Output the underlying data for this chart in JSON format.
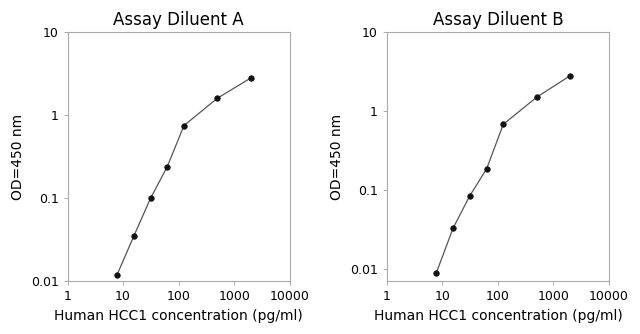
{
  "panel_A": {
    "title": "Assay Diluent A",
    "x": [
      7.8,
      15.6,
      31.25,
      62.5,
      125,
      500,
      2000
    ],
    "y": [
      0.012,
      0.035,
      0.1,
      0.24,
      0.75,
      1.6,
      2.8
    ]
  },
  "panel_B": {
    "title": "Assay Diluent B",
    "x": [
      7.8,
      15.6,
      31.25,
      62.5,
      125,
      500,
      2000
    ],
    "y": [
      0.009,
      0.033,
      0.085,
      0.185,
      0.68,
      1.5,
      2.8
    ]
  },
  "xlabel": "Human HCC1 concentration (pg/ml)",
  "ylabel": "OD=450 nm",
  "xlim": [
    1,
    10000
  ],
  "ylim_A": [
    0.01,
    10
  ],
  "ylim_B": [
    0.007,
    10
  ],
  "yticks_A": [
    0.01,
    0.1,
    1,
    10
  ],
  "yticks_B": [
    0.01,
    0.1,
    1,
    10
  ],
  "ytick_labels_A": [
    "0.01",
    "0.1",
    "1",
    "10"
  ],
  "ytick_labels_B": [
    "0.01",
    "0.1",
    "1",
    "10"
  ],
  "xticks": [
    1,
    10,
    100,
    1000,
    10000
  ],
  "xtick_labels": [
    "1",
    "10",
    "100",
    "1000",
    "10000"
  ],
  "line_color": "#555555",
  "marker_color": "#111111",
  "marker_size": 4,
  "title_fontsize": 12,
  "label_fontsize": 10,
  "tick_fontsize": 9,
  "spine_color": "#aaaaaa",
  "background_color": "#ffffff"
}
